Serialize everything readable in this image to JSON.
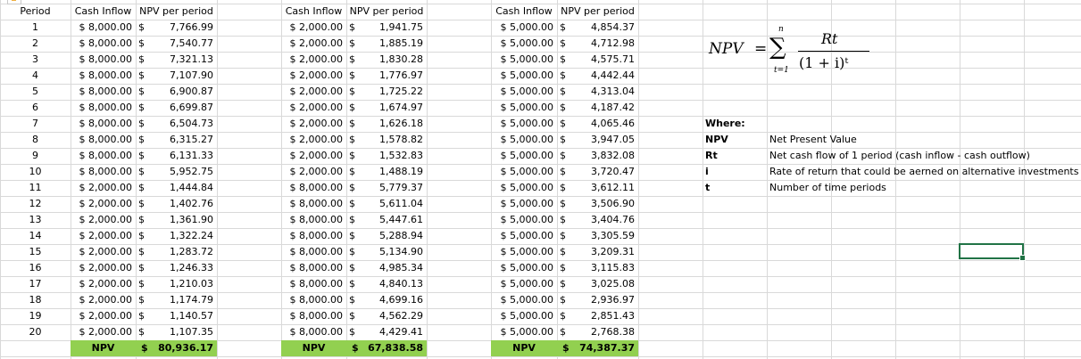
{
  "headers": {
    "period": "Period",
    "cash_inflow": "Cash Inflow",
    "npv_per_period": "NPV per period"
  },
  "currency_symbol": "$",
  "periods": [
    "1",
    "2",
    "3",
    "4",
    "5",
    "6",
    "7",
    "8",
    "9",
    "10",
    "11",
    "12",
    "13",
    "14",
    "15",
    "16",
    "17",
    "18",
    "19",
    "20"
  ],
  "scenarios": [
    {
      "cash_inflow": [
        "$ 8,000.00",
        "$ 8,000.00",
        "$ 8,000.00",
        "$ 8,000.00",
        "$ 8,000.00",
        "$ 8,000.00",
        "$ 8,000.00",
        "$ 8,000.00",
        "$ 8,000.00",
        "$ 8,000.00",
        "$ 2,000.00",
        "$ 2,000.00",
        "$ 2,000.00",
        "$ 2,000.00",
        "$ 2,000.00",
        "$ 2,000.00",
        "$ 2,000.00",
        "$ 2,000.00",
        "$ 2,000.00",
        "$ 2,000.00"
      ],
      "npv": [
        "7,766.99",
        "7,540.77",
        "7,321.13",
        "7,107.90",
        "6,900.87",
        "6,699.87",
        "6,504.73",
        "6,315.27",
        "6,131.33",
        "5,952.75",
        "1,444.84",
        "1,402.76",
        "1,361.90",
        "1,322.24",
        "1,283.72",
        "1,246.33",
        "1,210.03",
        "1,174.79",
        "1,140.57",
        "1,107.35"
      ],
      "total_label": "NPV",
      "total": "80,936.17"
    },
    {
      "cash_inflow": [
        "$ 2,000.00",
        "$ 2,000.00",
        "$ 2,000.00",
        "$ 2,000.00",
        "$ 2,000.00",
        "$ 2,000.00",
        "$ 2,000.00",
        "$ 2,000.00",
        "$ 2,000.00",
        "$ 2,000.00",
        "$ 8,000.00",
        "$ 8,000.00",
        "$ 8,000.00",
        "$ 8,000.00",
        "$ 8,000.00",
        "$ 8,000.00",
        "$ 8,000.00",
        "$ 8,000.00",
        "$ 8,000.00",
        "$ 8,000.00"
      ],
      "npv": [
        "1,941.75",
        "1,885.19",
        "1,830.28",
        "1,776.97",
        "1,725.22",
        "1,674.97",
        "1,626.18",
        "1,578.82",
        "1,532.83",
        "1,488.19",
        "5,779.37",
        "5,611.04",
        "5,447.61",
        "5,288.94",
        "5,134.90",
        "4,985.34",
        "4,840.13",
        "4,699.16",
        "4,562.29",
        "4,429.41"
      ],
      "total_label": "NPV",
      "total": "67,838.58"
    },
    {
      "cash_inflow": [
        "$ 5,000.00",
        "$ 5,000.00",
        "$ 5,000.00",
        "$ 5,000.00",
        "$ 5,000.00",
        "$ 5,000.00",
        "$ 5,000.00",
        "$ 5,000.00",
        "$ 5,000.00",
        "$ 5,000.00",
        "$ 5,000.00",
        "$ 5,000.00",
        "$ 5,000.00",
        "$ 5,000.00",
        "$ 5,000.00",
        "$ 5,000.00",
        "$ 5,000.00",
        "$ 5,000.00",
        "$ 5,000.00",
        "$ 5,000.00"
      ],
      "npv": [
        "4,854.37",
        "4,712.98",
        "4,575.71",
        "4,442.44",
        "4,313.04",
        "4,187.42",
        "4,065.46",
        "3,947.05",
        "3,832.08",
        "3,720.47",
        "3,612.11",
        "3,506.90",
        "3,404.76",
        "3,305.59",
        "3,209.31",
        "3,115.83",
        "3,025.08",
        "2,936.97",
        "2,851.43",
        "2,768.38"
      ],
      "total_label": "NPV",
      "total": "74,387.37"
    }
  ],
  "formula": {
    "lhs": "NPV",
    "equals": "=",
    "sigma": "∑",
    "upper": "n",
    "lower": "t=1",
    "numerator": "Rt",
    "denominator": "(1 + i)ᵗ"
  },
  "legend": {
    "title": "Where:",
    "items": [
      {
        "term": "NPV",
        "definition": "Net Present Value"
      },
      {
        "term": "Rt",
        "definition": "Net cash flow of 1 period (cash inflow - cash outflow)"
      },
      {
        "term": "i",
        "definition": "Rate of return that could be aerned on alternative investments"
      },
      {
        "term": "t",
        "definition": "Number of time periods"
      }
    ]
  },
  "colors": {
    "total_fill": "#92d050",
    "selection": "#217346",
    "gridline": "#d9d9d9"
  }
}
